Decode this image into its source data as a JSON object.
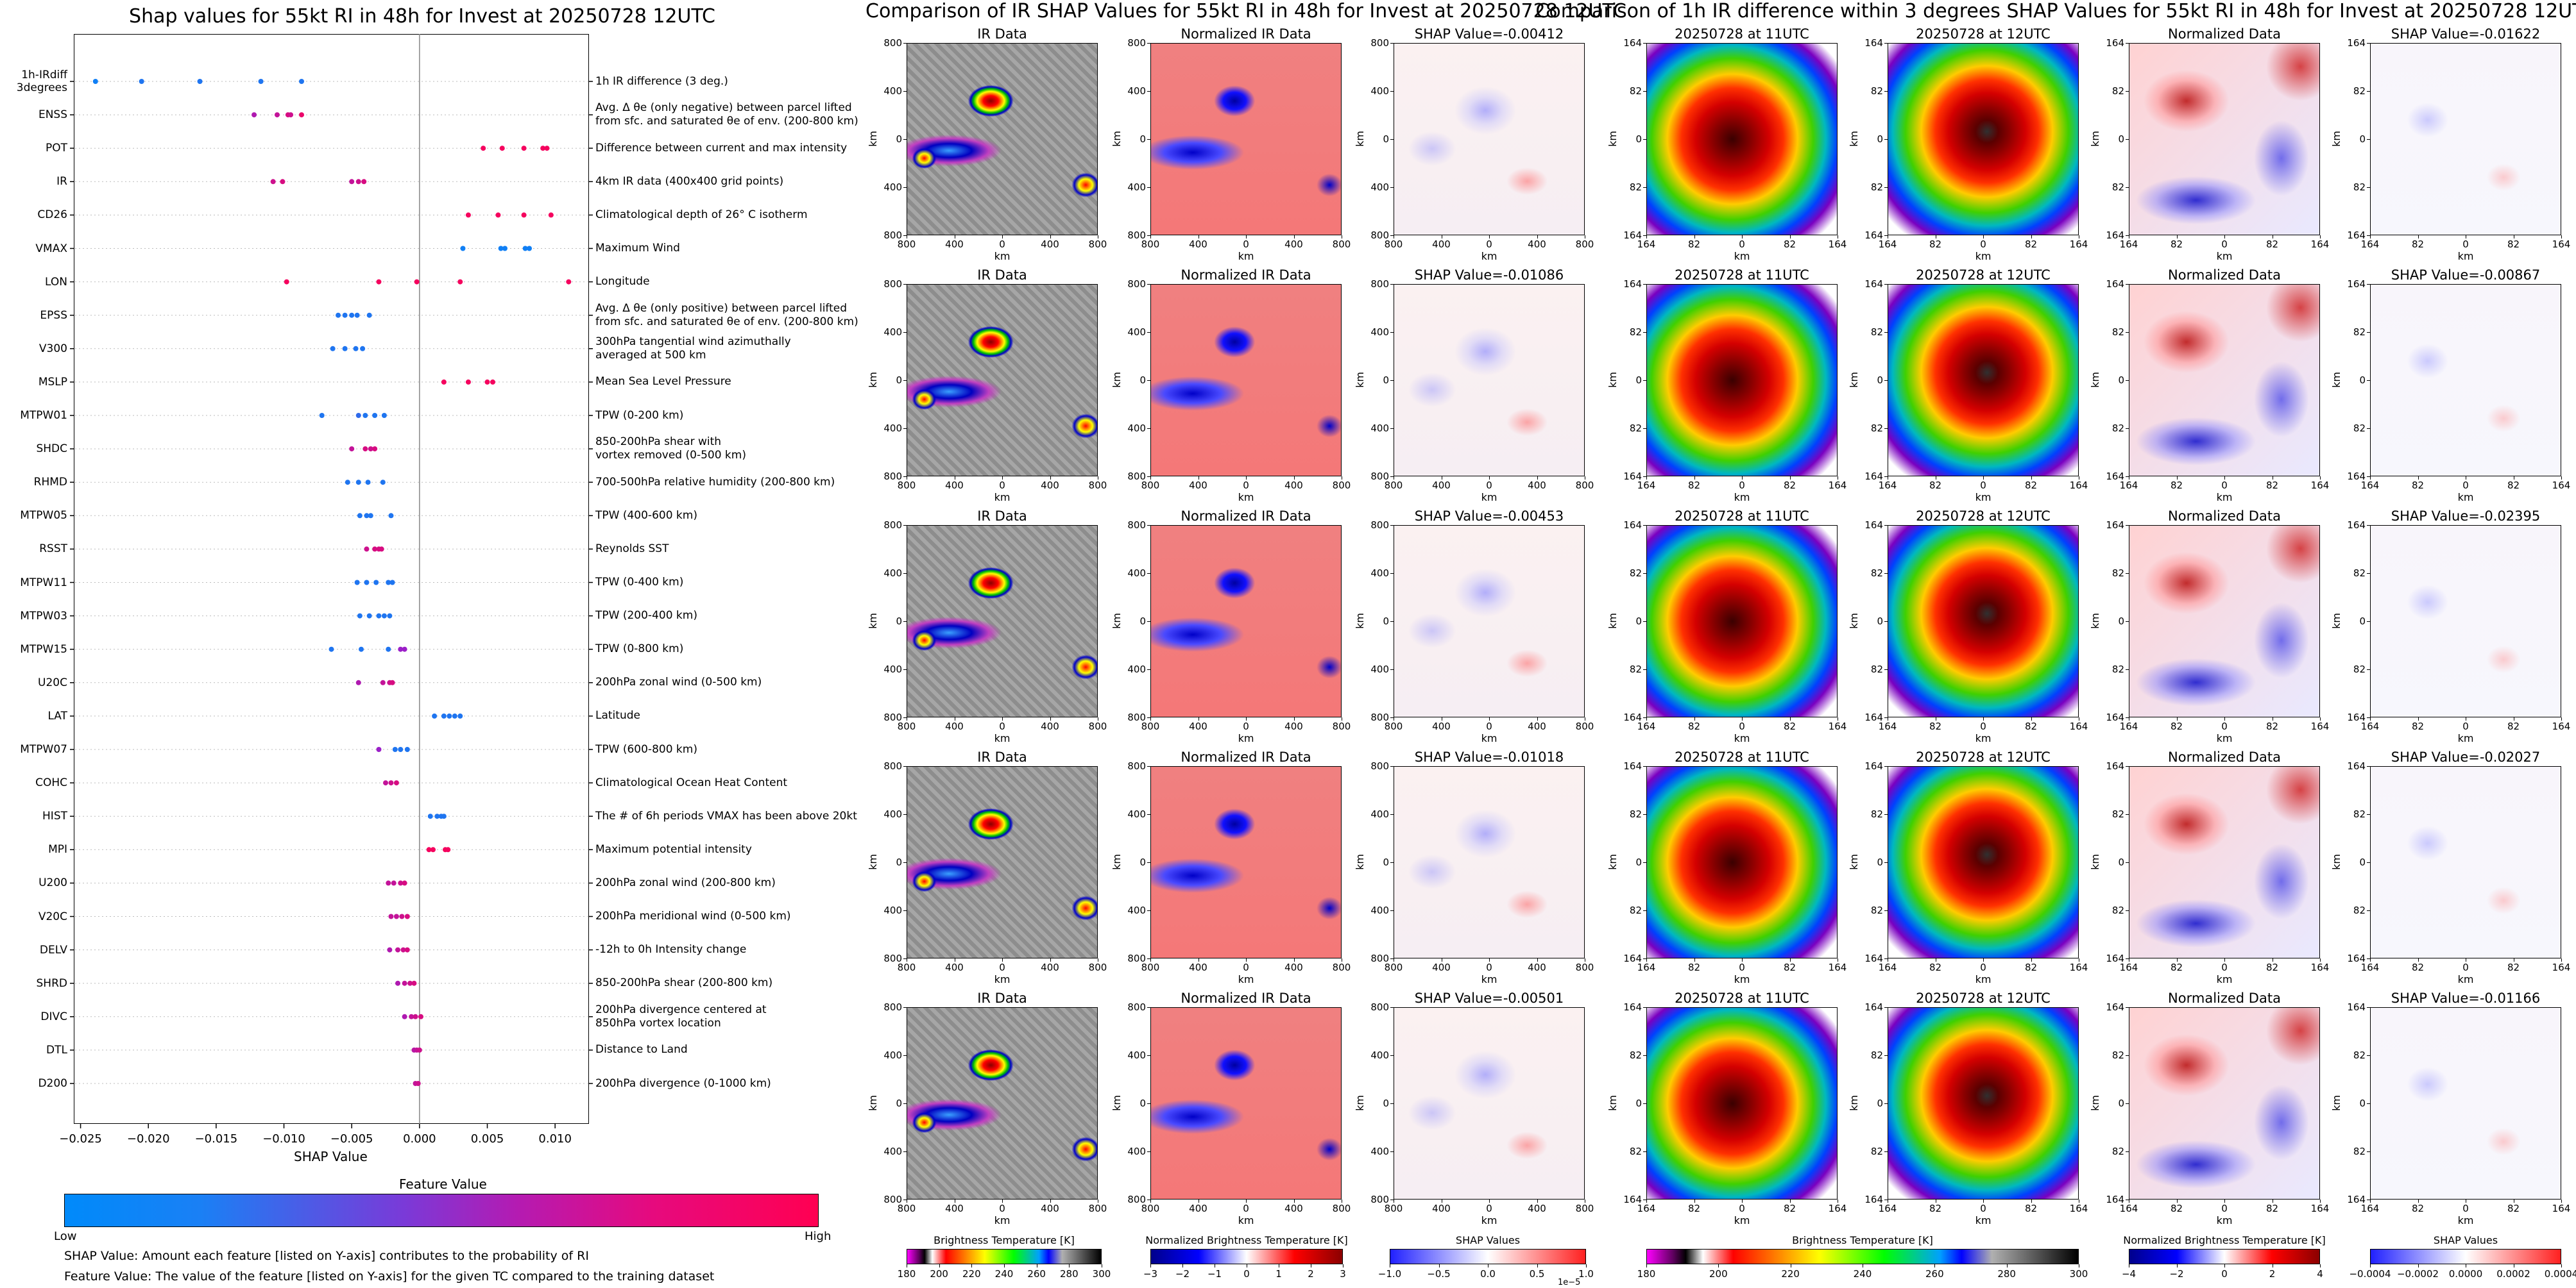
{
  "shap_plot": {
    "title": "Shap values for 55kt RI in 48h for Invest at 20250728 12UTC",
    "xlabel": "SHAP Value",
    "colorbar_title": "Feature Value",
    "colorbar_low": "Low",
    "colorbar_high": "High",
    "note1": "SHAP Value: Amount each feature [listed on Y-axis] contributes to the probability of RI",
    "note2": "Feature Value: The value of the feature [listed on Y-axis] for the given TC compared to the training dataset",
    "low_color": "#008afa",
    "high_color": "#ff0052"
  },
  "ir_grid": {
    "title": "Comparison of IR SHAP Values for 55kt RI in 48h for Invest at 20250728 12UTC",
    "col_titles": [
      "IR Data",
      "Normalized IR Data"
    ],
    "shap_titles": [
      "SHAP Value=-0.00412",
      "SHAP Value=-0.01086",
      "SHAP Value=-0.00453",
      "SHAP Value=-0.01018",
      "SHAP Value=-0.00501"
    ],
    "xlabel": "km",
    "ylabel": "km",
    "xticks": [
      "800",
      "400",
      "0",
      "400",
      "800"
    ],
    "yticks": [
      "800",
      "400",
      "0",
      "400",
      "800"
    ],
    "cb1_label": "Brightness Temperature [K]",
    "cb1_ticks": [
      "180",
      "200",
      "220",
      "240",
      "260",
      "280",
      "300"
    ],
    "cb2_label": "Normalized Brightness Temperature [K]",
    "cb2_ticks": [
      "−3",
      "−2",
      "−1",
      "0",
      "1",
      "2",
      "3"
    ],
    "cb3_label": "SHAP Values",
    "cb3_ticks": [
      "−1.0",
      "−0.5",
      "0.0",
      "0.5",
      "1.0"
    ],
    "cb3_exp": "1e−5"
  },
  "diff_grid": {
    "title": "Comparison of 1h IR difference within 3 degrees SHAP Values for 55kt RI in 48h for Invest at 20250728 12UTC",
    "col_titles": [
      "20250728 at 11UTC",
      "20250728 at 12UTC",
      "Normalized Data"
    ],
    "shap_titles": [
      "SHAP Value=-0.01622",
      "SHAP Value=-0.00867",
      "SHAP Value=-0.02395",
      "SHAP Value=-0.02027",
      "SHAP Value=-0.01166"
    ],
    "xlabel": "km",
    "ylabel": "km",
    "xticks": [
      "164",
      "82",
      "0",
      "82",
      "164"
    ],
    "yticks": [
      "164",
      "82",
      "0",
      "82",
      "164"
    ],
    "cb1_label": "Brightness Temperature [K]",
    "cb1_ticks": [
      "180",
      "200",
      "220",
      "240",
      "260",
      "280",
      "300"
    ],
    "cb2_label": "Normalized Brightness Temperature [K]",
    "cb2_ticks": [
      "−4",
      "−2",
      "0",
      "2",
      "4"
    ],
    "cb3_label": "SHAP Values",
    "cb3_ticks": [
      "−0.0004",
      "−0.0002",
      "0.0000",
      "0.0002",
      "0.0004"
    ]
  },
  "chart_data": {
    "type": "scatter",
    "title": "Shap values for 55kt RI in 48h for Invest at 20250728 12UTC",
    "xlabel": "SHAP Value",
    "xlim": [
      -0.0255,
      0.0125
    ],
    "xticks": [
      "−0.025",
      "−0.020",
      "−0.015",
      "−0.010",
      "−0.005",
      "0.000",
      "0.005",
      "0.010"
    ],
    "grid": false,
    "features": [
      {
        "name": "1h-IRdiff\n3degrees",
        "desc": "1h IR difference (3 deg.)",
        "points": [
          [
            -0.0239,
            0.05
          ],
          [
            -0.0205,
            0.1
          ],
          [
            -0.0162,
            0.1
          ],
          [
            -0.0117,
            0.1
          ],
          [
            -0.0087,
            0.1
          ]
        ]
      },
      {
        "name": "ENSS",
        "desc": "Avg. Δ θe (only negative) between parcel lifted\nfrom sfc. and saturated θe of env. (200-800 km)",
        "points": [
          [
            -0.0122,
            0.6
          ],
          [
            -0.0105,
            0.7
          ],
          [
            -0.0097,
            0.8
          ],
          [
            -0.0095,
            0.75
          ],
          [
            -0.0087,
            0.9
          ]
        ]
      },
      {
        "name": "POT",
        "desc": "Difference between current and max intensity",
        "points": [
          [
            0.0047,
            0.95
          ],
          [
            0.0061,
            0.95
          ],
          [
            0.0077,
            0.95
          ],
          [
            0.0091,
            0.95
          ],
          [
            0.0094,
            0.95
          ]
        ]
      },
      {
        "name": "IR",
        "desc": "4km IR data (400x400 grid points)",
        "points": [
          [
            -0.0108,
            0.75
          ],
          [
            -0.0101,
            0.8
          ],
          [
            -0.005,
            0.7
          ],
          [
            -0.0045,
            0.75
          ],
          [
            -0.0041,
            0.8
          ]
        ]
      },
      {
        "name": "CD26",
        "desc": "Climatological depth of 26° C isotherm",
        "points": [
          [
            0.0036,
            0.95
          ],
          [
            0.0058,
            0.95
          ],
          [
            0.0077,
            0.95
          ],
          [
            0.0097,
            0.95
          ]
        ]
      },
      {
        "name": "VMAX",
        "desc": "Maximum Wind",
        "points": [
          [
            0.0032,
            0.05
          ],
          [
            0.006,
            0.05
          ],
          [
            0.0063,
            0.05
          ],
          [
            0.0078,
            0.05
          ],
          [
            0.0081,
            0.05
          ]
        ]
      },
      {
        "name": "LON",
        "desc": "Longitude",
        "points": [
          [
            -0.0098,
            0.95
          ],
          [
            -0.003,
            0.95
          ],
          [
            -0.0002,
            0.95
          ],
          [
            0.003,
            0.95
          ],
          [
            0.011,
            0.95
          ]
        ]
      },
      {
        "name": "EPSS",
        "desc": "Avg. Δ θe (only positive) between parcel lifted\nfrom sfc. and saturated θe of env. (200-800 km)",
        "points": [
          [
            -0.006,
            0.1
          ],
          [
            -0.0055,
            0.1
          ],
          [
            -0.005,
            0.1
          ],
          [
            -0.0046,
            0.1
          ],
          [
            -0.0037,
            0.1
          ]
        ]
      },
      {
        "name": "V300",
        "desc": "300hPa tangential wind azimuthally\naveraged at 500 km",
        "points": [
          [
            -0.0064,
            0.1
          ],
          [
            -0.0055,
            0.1
          ],
          [
            -0.0047,
            0.1
          ],
          [
            -0.0042,
            0.1
          ]
        ]
      },
      {
        "name": "MSLP",
        "desc": "Mean Sea Level Pressure",
        "points": [
          [
            0.0018,
            0.95
          ],
          [
            0.0036,
            0.95
          ],
          [
            0.005,
            0.95
          ],
          [
            0.0054,
            0.95
          ]
        ]
      },
      {
        "name": "MTPW01",
        "desc": "TPW (0-200 km)",
        "points": [
          [
            -0.0072,
            0.1
          ],
          [
            -0.0045,
            0.15
          ],
          [
            -0.004,
            0.1
          ],
          [
            -0.0033,
            0.1
          ],
          [
            -0.0026,
            0.1
          ]
        ]
      },
      {
        "name": "SHDC",
        "desc": "850-200hPa shear with\nvortex removed (0-500 km)",
        "points": [
          [
            -0.005,
            0.7
          ],
          [
            -0.004,
            0.8
          ],
          [
            -0.0036,
            0.75
          ],
          [
            -0.0033,
            0.8
          ]
        ]
      },
      {
        "name": "RHMD",
        "desc": "700-500hPa relative humidity (200-800 km)",
        "points": [
          [
            -0.0053,
            0.1
          ],
          [
            -0.0045,
            0.1
          ],
          [
            -0.0038,
            0.1
          ],
          [
            -0.0027,
            0.1
          ]
        ]
      },
      {
        "name": "MTPW05",
        "desc": "TPW (400-600 km)",
        "points": [
          [
            -0.0044,
            0.1
          ],
          [
            -0.0039,
            0.1
          ],
          [
            -0.0036,
            0.1
          ],
          [
            -0.0021,
            0.1
          ]
        ]
      },
      {
        "name": "RSST",
        "desc": "Reynolds SST",
        "points": [
          [
            -0.0039,
            0.75
          ],
          [
            -0.0033,
            0.8
          ],
          [
            -0.003,
            0.8
          ],
          [
            -0.0028,
            0.8
          ]
        ]
      },
      {
        "name": "MTPW11",
        "desc": "TPW (0-400 km)",
        "points": [
          [
            -0.0046,
            0.1
          ],
          [
            -0.0039,
            0.1
          ],
          [
            -0.0032,
            0.1
          ],
          [
            -0.0023,
            0.1
          ],
          [
            -0.002,
            0.1
          ]
        ]
      },
      {
        "name": "MTPW03",
        "desc": "TPW (200-400 km)",
        "points": [
          [
            -0.0044,
            0.1
          ],
          [
            -0.0037,
            0.1
          ],
          [
            -0.003,
            0.1
          ],
          [
            -0.0026,
            0.1
          ],
          [
            -0.0022,
            0.1
          ]
        ]
      },
      {
        "name": "MTPW15",
        "desc": "TPW (0-800 km)",
        "points": [
          [
            -0.0065,
            0.1
          ],
          [
            -0.0043,
            0.1
          ],
          [
            -0.0023,
            0.1
          ],
          [
            -0.0014,
            0.5
          ],
          [
            -0.0011,
            0.5
          ]
        ]
      },
      {
        "name": "U20C",
        "desc": "200hPa zonal wind (0-500 km)",
        "points": [
          [
            -0.0045,
            0.6
          ],
          [
            -0.0027,
            0.7
          ],
          [
            -0.0022,
            0.75
          ],
          [
            -0.002,
            0.8
          ]
        ]
      },
      {
        "name": "LAT",
        "desc": "Latitude",
        "points": [
          [
            0.0011,
            0.1
          ],
          [
            0.0018,
            0.1
          ],
          [
            0.0022,
            0.1
          ],
          [
            0.0026,
            0.1
          ],
          [
            0.003,
            0.1
          ]
        ]
      },
      {
        "name": "MTPW07",
        "desc": "TPW (600-800 km)",
        "points": [
          [
            -0.003,
            0.5
          ],
          [
            -0.0018,
            0.1
          ],
          [
            -0.0014,
            0.1
          ],
          [
            -0.0009,
            0.1
          ]
        ]
      },
      {
        "name": "COHC",
        "desc": "Climatological Ocean Heat Content",
        "points": [
          [
            -0.0025,
            0.7
          ],
          [
            -0.0021,
            0.75
          ],
          [
            -0.0017,
            0.8
          ]
        ]
      },
      {
        "name": "HIST",
        "desc": "The # of 6h periods VMAX has been above 20kt",
        "points": [
          [
            0.0008,
            0.1
          ],
          [
            0.0013,
            0.1
          ],
          [
            0.0016,
            0.1
          ],
          [
            0.0018,
            0.1
          ]
        ]
      },
      {
        "name": "MPI",
        "desc": "Maximum potential intensity",
        "points": [
          [
            0.0007,
            0.95
          ],
          [
            0.001,
            0.95
          ],
          [
            0.0019,
            0.95
          ],
          [
            0.0021,
            0.95
          ]
        ]
      },
      {
        "name": "U200",
        "desc": "200hPa zonal wind (200-800 km)",
        "points": [
          [
            -0.0023,
            0.7
          ],
          [
            -0.0019,
            0.7
          ],
          [
            -0.0014,
            0.75
          ],
          [
            -0.0011,
            0.8
          ]
        ]
      },
      {
        "name": "V20C",
        "desc": "200hPa meridional wind (0-500 km)",
        "points": [
          [
            -0.0021,
            0.7
          ],
          [
            -0.0017,
            0.7
          ],
          [
            -0.0013,
            0.75
          ],
          [
            -0.0009,
            0.8
          ]
        ]
      },
      {
        "name": "DELV",
        "desc": "-12h to 0h Intensity change",
        "points": [
          [
            -0.0022,
            0.6
          ],
          [
            -0.0016,
            0.7
          ],
          [
            -0.0012,
            0.75
          ],
          [
            -0.0009,
            0.8
          ]
        ]
      },
      {
        "name": "SHRD",
        "desc": "850-200hPa shear (200-800 km)",
        "points": [
          [
            -0.0016,
            0.6
          ],
          [
            -0.0011,
            0.7
          ],
          [
            -0.0007,
            0.75
          ],
          [
            -0.0004,
            0.8
          ]
        ]
      },
      {
        "name": "DIVC",
        "desc": "200hPa divergence centered at\n850hPa vortex location",
        "points": [
          [
            -0.0011,
            0.6
          ],
          [
            -0.0006,
            0.7
          ],
          [
            -0.0003,
            0.75
          ],
          [
            0.0001,
            0.8
          ]
        ]
      },
      {
        "name": "DTL",
        "desc": "Distance to Land",
        "points": [
          [
            -0.0004,
            0.65
          ],
          [
            -0.0002,
            0.7
          ],
          [
            0.0,
            0.75
          ]
        ]
      },
      {
        "name": "D200",
        "desc": "200hPa divergence (0-1000 km)",
        "points": [
          [
            -0.0003,
            0.7
          ],
          [
            -0.0001,
            0.75
          ]
        ]
      }
    ]
  }
}
